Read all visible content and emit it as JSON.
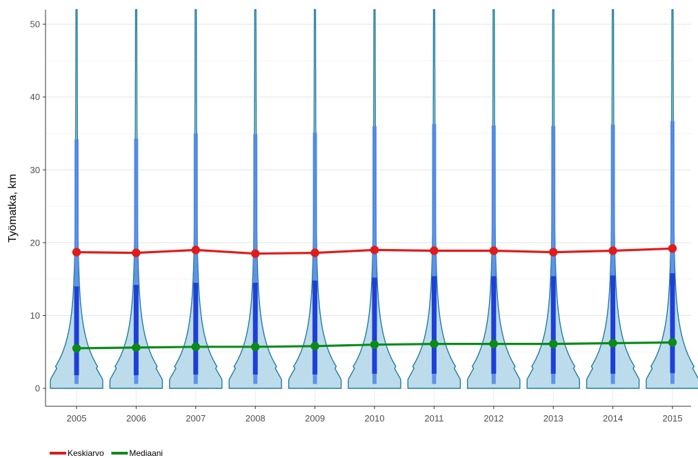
{
  "chart_data": {
    "type": "violin",
    "ylabel": "Työmatka, km",
    "xlabel": "",
    "ylim": [
      0,
      52
    ],
    "y_ticks": [
      0,
      10,
      20,
      30,
      40,
      50
    ],
    "categories": [
      "2005",
      "2006",
      "2007",
      "2008",
      "2009",
      "2010",
      "2011",
      "2012",
      "2013",
      "2014",
      "2015"
    ],
    "grid": true,
    "legend_position": "bottom-left",
    "colors": {
      "violin_fill": "#bcdcec",
      "violin_stroke": "#1f7a9c",
      "box_whisker": "#4f86e6",
      "box_iqr": "#1f3fd8",
      "mean": "#e01b1b",
      "median": "#0c8a1a",
      "grid": "#e6e6e6",
      "axis": "#333333"
    },
    "violins": [
      {
        "x": "2005",
        "q1": 1.8,
        "q3": 14.0,
        "whisker_low": 0.6,
        "whisker_high": 34.2
      },
      {
        "x": "2006",
        "q1": 1.8,
        "q3": 14.2,
        "whisker_low": 0.6,
        "whisker_high": 34.3
      },
      {
        "x": "2007",
        "q1": 1.9,
        "q3": 14.5,
        "whisker_low": 0.6,
        "whisker_high": 35.0
      },
      {
        "x": "2008",
        "q1": 1.9,
        "q3": 14.5,
        "whisker_low": 0.6,
        "whisker_high": 34.9
      },
      {
        "x": "2009",
        "q1": 1.9,
        "q3": 14.8,
        "whisker_low": 0.6,
        "whisker_high": 35.1
      },
      {
        "x": "2010",
        "q1": 2.0,
        "q3": 15.2,
        "whisker_low": 0.6,
        "whisker_high": 36.0
      },
      {
        "x": "2011",
        "q1": 2.0,
        "q3": 15.4,
        "whisker_low": 0.6,
        "whisker_high": 36.3
      },
      {
        "x": "2012",
        "q1": 2.0,
        "q3": 15.4,
        "whisker_low": 0.6,
        "whisker_high": 36.1
      },
      {
        "x": "2013",
        "q1": 2.0,
        "q3": 15.4,
        "whisker_low": 0.6,
        "whisker_high": 36.0
      },
      {
        "x": "2014",
        "q1": 2.0,
        "q3": 15.5,
        "whisker_low": 0.6,
        "whisker_high": 36.2
      },
      {
        "x": "2015",
        "q1": 2.1,
        "q3": 15.8,
        "whisker_low": 0.6,
        "whisker_high": 36.7
      }
    ],
    "series": [
      {
        "name": "Keskiarvo",
        "color": "#e01b1b",
        "values": [
          18.7,
          18.6,
          19.0,
          18.5,
          18.6,
          19.0,
          18.9,
          18.9,
          18.7,
          18.9,
          19.2
        ]
      },
      {
        "name": "Mediaani",
        "color": "#0c8a1a",
        "values": [
          5.5,
          5.6,
          5.7,
          5.7,
          5.8,
          6.0,
          6.1,
          6.1,
          6.1,
          6.2,
          6.3
        ]
      }
    ]
  }
}
